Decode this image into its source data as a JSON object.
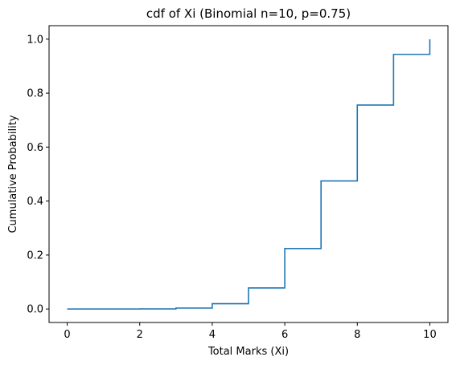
{
  "chart_data": {
    "type": "line",
    "drawstyle": "steps-post",
    "title": "cdf of Xi (Binomial n=10, p=0.75)",
    "xlabel": "Total Marks (Xi)",
    "ylabel": "Cumulative Probability",
    "xlim": [
      -0.5,
      10.5
    ],
    "ylim": [
      -0.05,
      1.05
    ],
    "x_ticks": [
      0,
      2,
      4,
      6,
      8,
      10
    ],
    "x_tick_labels": [
      "0",
      "2",
      "4",
      "6",
      "8",
      "10"
    ],
    "y_ticks": [
      0.0,
      0.2,
      0.4,
      0.6,
      0.8,
      1.0
    ],
    "y_tick_labels": [
      "0.0",
      "0.2",
      "0.4",
      "0.6",
      "0.8",
      "1.0"
    ],
    "grid": false,
    "legend": null,
    "series": [
      {
        "name": "cdf",
        "color": "#1f77b4",
        "x": [
          0,
          1,
          2,
          3,
          4,
          5,
          6,
          7,
          8,
          9,
          10
        ],
        "values": [
          0.0,
          0.0,
          0.0004,
          0.0035,
          0.0197,
          0.0781,
          0.2241,
          0.4744,
          0.756,
          0.9437,
          1.0
        ]
      }
    ]
  }
}
